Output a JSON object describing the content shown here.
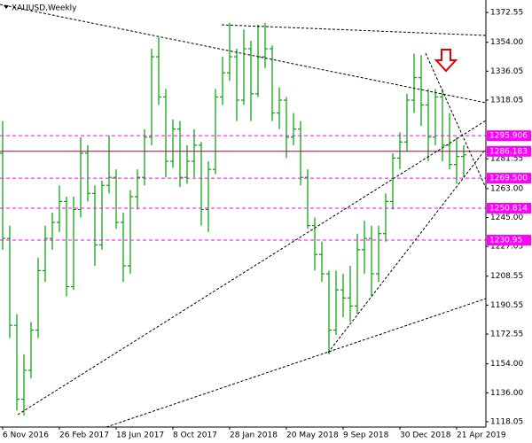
{
  "chart_data": {
    "type": "ohlc",
    "title": "XAUUSD,Weekly",
    "categories": [
      "6 Nov 2016",
      null,
      null,
      null,
      null,
      null,
      null,
      null,
      "26 Feb 2017",
      null,
      null,
      null,
      null,
      null,
      null,
      null,
      "18 Jun 2017",
      null,
      null,
      null,
      null,
      null,
      null,
      null,
      "8 Oct 2017",
      null,
      null,
      null,
      null,
      null,
      null,
      null,
      "28 Jan 2018",
      null,
      null,
      null,
      null,
      null,
      null,
      null,
      "20 May 2018",
      null,
      null,
      null,
      null,
      null,
      null,
      null,
      "9 Sep 2018",
      null,
      null,
      null,
      null,
      null,
      null,
      null,
      "30 Dec 2018",
      null,
      null,
      null,
      null,
      null,
      null,
      null,
      "21 Apr 2019",
      null
    ],
    "open": [
      1285,
      1232,
      1178,
      1132,
      1150,
      1175,
      1212,
      1232,
      1242,
      1255,
      1202,
      1250,
      1285,
      1260,
      1228,
      1265,
      1270,
      1242,
      1215,
      1258,
      1270,
      1295,
      1345,
      1320,
      1280,
      1300,
      1270,
      1280,
      1290,
      1250,
      1275,
      1320,
      1335,
      1345,
      1318,
      1350,
      1322,
      1345,
      1350,
      1310,
      1318,
      1295,
      1300,
      1270,
      1240,
      1222,
      1210,
      1175,
      1200,
      1195,
      1190,
      1225,
      1232,
      1210,
      1235,
      1255,
      1282,
      1292,
      1318,
      1332,
      1315,
      1295,
      1320,
      1290,
      1278,
      1283
    ],
    "high": [
      1305,
      1240,
      1185,
      1160,
      1180,
      1220,
      1240,
      1248,
      1265,
      1258,
      1258,
      1295,
      1290,
      1265,
      1268,
      1296,
      1275,
      1248,
      1262,
      1275,
      1300,
      1350,
      1357,
      1325,
      1306,
      1305,
      1290,
      1300,
      1292,
      1280,
      1325,
      1345,
      1366,
      1350,
      1362,
      1355,
      1365,
      1366,
      1352,
      1326,
      1320,
      1310,
      1305,
      1275,
      1245,
      1230,
      1212,
      1212,
      1210,
      1215,
      1235,
      1243,
      1240,
      1240,
      1260,
      1285,
      1298,
      1322,
      1347,
      1346,
      1325,
      1325,
      1325,
      1310,
      1295,
      1290
    ],
    "low": [
      1225,
      1170,
      1125,
      1122,
      1145,
      1170,
      1205,
      1225,
      1236,
      1196,
      1200,
      1245,
      1255,
      1215,
      1225,
      1260,
      1238,
      1205,
      1210,
      1250,
      1265,
      1290,
      1315,
      1270,
      1276,
      1264,
      1266,
      1270,
      1240,
      1236,
      1272,
      1315,
      1330,
      1305,
      1315,
      1305,
      1320,
      1338,
      1305,
      1300,
      1282,
      1290,
      1265,
      1238,
      1212,
      1205,
      1160,
      1172,
      1183,
      1180,
      1185,
      1210,
      1196,
      1205,
      1230,
      1250,
      1275,
      1286,
      1310,
      1302,
      1280,
      1290,
      1280,
      1275,
      1266,
      1270
    ],
    "close": [
      1232,
      1178,
      1132,
      1150,
      1175,
      1212,
      1232,
      1242,
      1255,
      1202,
      1250,
      1285,
      1260,
      1228,
      1265,
      1270,
      1242,
      1215,
      1258,
      1270,
      1295,
      1345,
      1320,
      1280,
      1300,
      1270,
      1280,
      1290,
      1250,
      1275,
      1320,
      1335,
      1345,
      1318,
      1350,
      1322,
      1345,
      1350,
      1310,
      1318,
      1295,
      1300,
      1270,
      1240,
      1222,
      1210,
      1175,
      1200,
      1195,
      1190,
      1225,
      1232,
      1210,
      1235,
      1255,
      1282,
      1292,
      1318,
      1332,
      1315,
      1295,
      1320,
      1290,
      1278,
      1283,
      1284
    ],
    "color": "#00a000",
    "ylim": [
      1114.7,
      1380.3
    ],
    "yticks": [
      1372.55,
      {
        "value": 1354,
        "label": "1354.00"
      },
      1336.05,
      1318.05,
      1281.55,
      {
        "value": 1263,
        "label": "1263.00"
      },
      {
        "value": 1245,
        "label": "1245.00"
      },
      1227.05,
      1208.55,
      1190.55,
      1172.55,
      {
        "value": 1154,
        "label": "1154.00"
      },
      {
        "value": 1136,
        "label": "1136.00"
      },
      1118.05
    ],
    "levels": [
      1295.906,
      1286.183,
      {
        "value": 1269.5,
        "label": "1269.500"
      },
      1250.814,
      1230.95
    ],
    "level_color": "#ff00ff",
    "grid": false
  }
}
